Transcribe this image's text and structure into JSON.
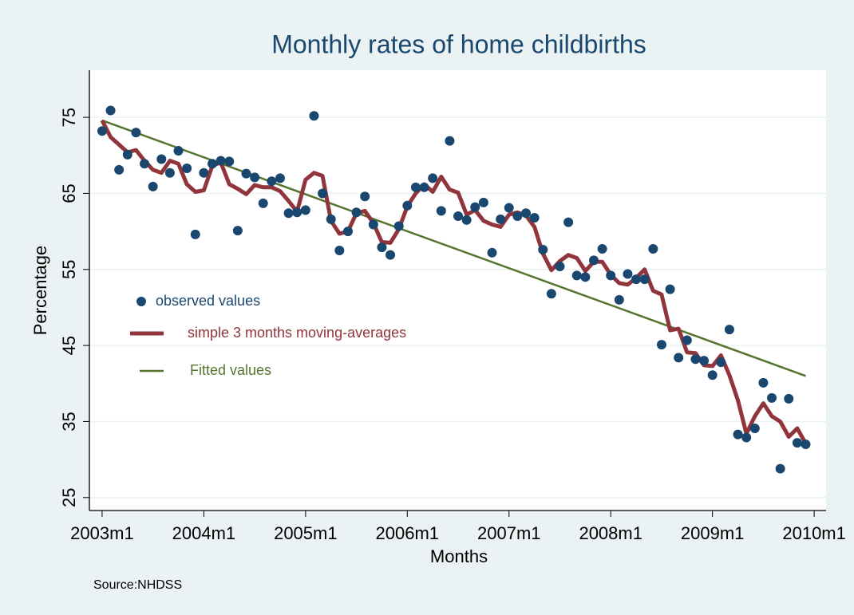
{
  "chart_data": {
    "type": "scatter",
    "title": "Monthly rates  of home childbirths",
    "x_label": "Months",
    "y_label": "Percentage",
    "note": "Source:NHDSS",
    "x": [
      516,
      517,
      518,
      519,
      520,
      521,
      522,
      523,
      524,
      525,
      526,
      527,
      528,
      529,
      530,
      531,
      532,
      533,
      534,
      535,
      536,
      537,
      538,
      539,
      540,
      541,
      542,
      543,
      544,
      545,
      546,
      547,
      548,
      549,
      550,
      551,
      552,
      553,
      554,
      555,
      556,
      557,
      558,
      559,
      560,
      561,
      562,
      563,
      564,
      565,
      566,
      567,
      568,
      569,
      570,
      571,
      572,
      573,
      574,
      575,
      576,
      577,
      578,
      579,
      580,
      581,
      582,
      583,
      584,
      585,
      586,
      587,
      588,
      589,
      590,
      591,
      592,
      593,
      594,
      595,
      596,
      597,
      598,
      599
    ],
    "series": [
      {
        "name": "observed values",
        "kind": "points",
        "color": "#1a476f",
        "values": [
          73.2,
          75.9,
          68.1,
          70.1,
          73.0,
          68.9,
          65.9,
          69.5,
          67.7,
          70.6,
          68.3,
          59.6,
          67.7,
          68.9,
          69.3,
          69.2,
          60.1,
          67.6,
          67.1,
          63.7,
          66.6,
          67.0,
          62.4,
          62.5,
          62.8,
          75.2,
          65.0,
          61.6,
          57.5,
          60.0,
          62.5,
          64.6,
          60.9,
          57.9,
          56.9,
          60.7,
          63.4,
          65.8,
          65.8,
          67.0,
          62.7,
          71.9,
          62.0,
          61.5,
          63.2,
          63.8,
          57.2,
          61.6,
          63.1,
          62.0,
          62.4,
          61.8,
          57.6,
          51.8,
          55.4,
          61.2,
          54.2,
          54.0,
          56.2,
          57.7,
          54.2,
          51.0,
          54.4,
          53.7,
          53.7,
          57.7,
          45.1,
          52.4,
          43.4,
          45.7,
          43.2,
          43.0,
          41.1,
          42.8,
          47.1,
          33.3,
          32.9,
          34.1,
          40.1,
          38.1,
          28.8,
          38.0,
          32.2,
          32.0
        ]
      },
      {
        "name": "simple 3 months moving-averages",
        "kind": "line",
        "color": "#90353b",
        "values": [
          74.6,
          72.4,
          71.4,
          70.4,
          70.7,
          69.3,
          68.1,
          67.7,
          69.3,
          68.9,
          66.2,
          65.2,
          65.4,
          68.6,
          69.1,
          66.2,
          65.6,
          64.9,
          66.1,
          65.8,
          65.8,
          65.3,
          64.0,
          62.6,
          66.8,
          67.7,
          67.3,
          61.4,
          59.7,
          60.0,
          62.4,
          62.7,
          61.1,
          58.6,
          58.5,
          60.3,
          63.3,
          65.0,
          66.2,
          65.2,
          67.2,
          65.5,
          65.1,
          62.2,
          62.8,
          61.4,
          60.9,
          60.6,
          62.2,
          62.5,
          62.1,
          60.6,
          57.1,
          54.9,
          56.1,
          56.9,
          56.5,
          54.8,
          56.0,
          56.0,
          54.3,
          53.2,
          53.0,
          53.9,
          55.0,
          52.2,
          51.7,
          47.0,
          47.2,
          44.1,
          44.0,
          42.4,
          42.3,
          43.7,
          41.1,
          37.8,
          33.4,
          35.7,
          37.4,
          35.7,
          35.0,
          33.0,
          34.1,
          32.1
        ]
      },
      {
        "name": "Fitted values",
        "kind": "line",
        "color": "#55752f",
        "x": [
          516,
          599
        ],
        "values": [
          74.6,
          41.0
        ]
      }
    ],
    "xlim": [
      514.5,
      601.4
    ],
    "ylim": [
      23.3,
      81.2
    ],
    "xticks": [
      {
        "value": 516,
        "label": "2003m1"
      },
      {
        "value": 528,
        "label": "2004m1"
      },
      {
        "value": 540,
        "label": "2005m1"
      },
      {
        "value": 552,
        "label": "2006m1"
      },
      {
        "value": 564,
        "label": "2007m1"
      },
      {
        "value": 576,
        "label": "2008m1"
      },
      {
        "value": 588,
        "label": "2009m1"
      },
      {
        "value": 600,
        "label": "2010m1"
      }
    ],
    "yticks": [
      25,
      35,
      45,
      55,
      65,
      75
    ],
    "grid": true
  }
}
